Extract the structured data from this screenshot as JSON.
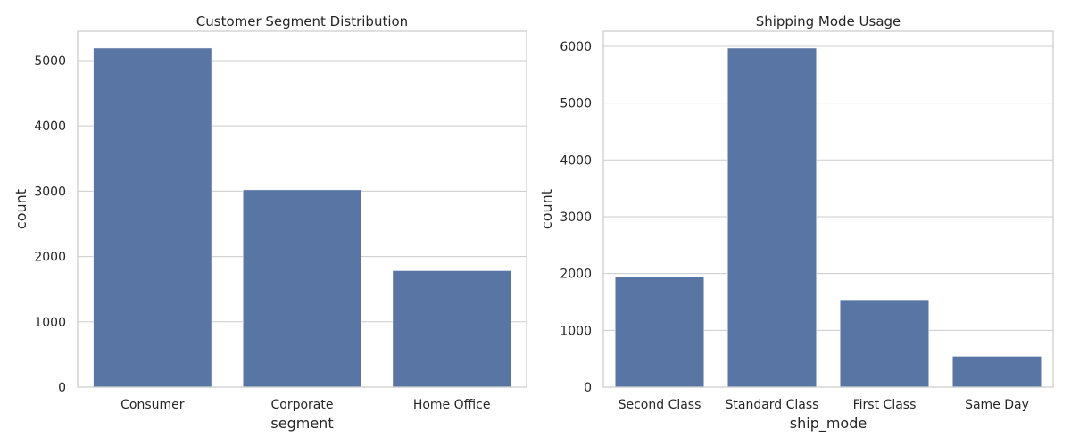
{
  "chart_data": [
    {
      "type": "bar",
      "title": "Customer Segment Distribution",
      "xlabel": "segment",
      "ylabel": "count",
      "categories": [
        "Consumer",
        "Corporate",
        "Home Office"
      ],
      "values": [
        5191,
        3020,
        1783
      ],
      "ylim": [
        0,
        5450
      ],
      "yticks": [
        0,
        1000,
        2000,
        3000,
        4000,
        5000
      ],
      "grid": true,
      "bar_color": "#5975a4"
    },
    {
      "type": "bar",
      "title": "Shipping Mode Usage",
      "xlabel": "ship_mode",
      "ylabel": "count",
      "categories": [
        "Second Class",
        "Standard Class",
        "First Class",
        "Same Day"
      ],
      "values": [
        1945,
        5968,
        1538,
        543
      ],
      "ylim": [
        0,
        6266
      ],
      "yticks": [
        0,
        1000,
        2000,
        3000,
        4000,
        5000,
        6000
      ],
      "grid": true,
      "bar_color": "#5975a4"
    }
  ]
}
